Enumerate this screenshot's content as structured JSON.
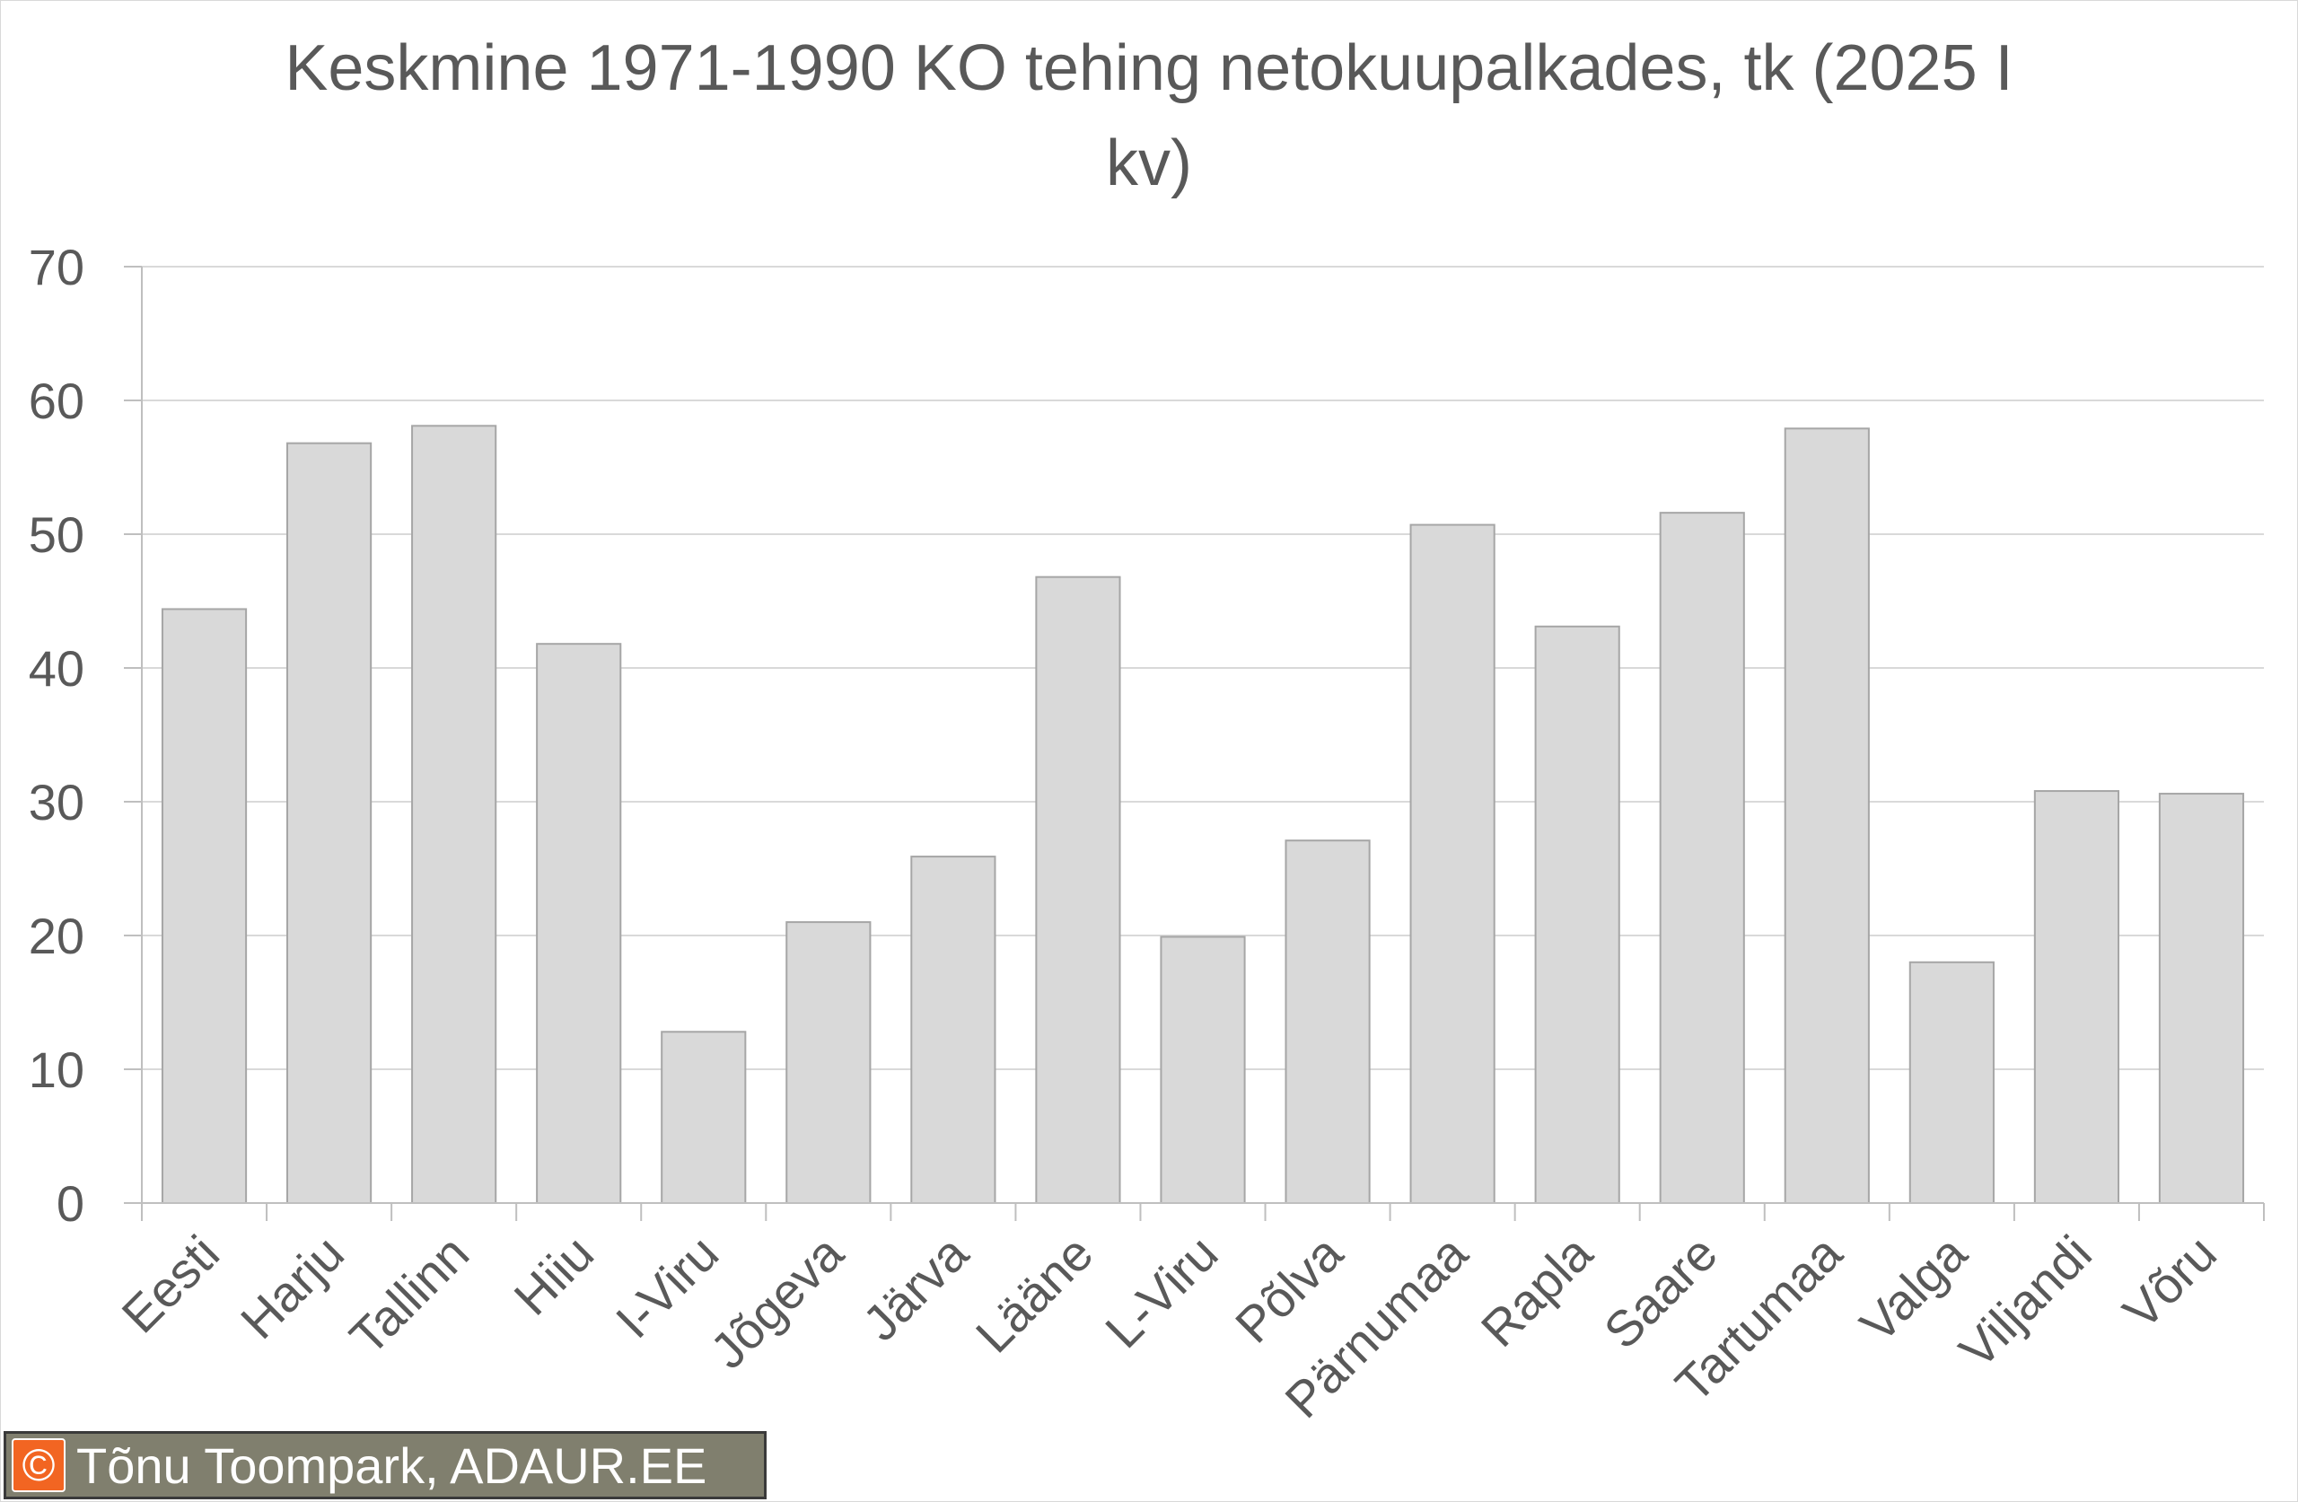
{
  "chart_data": {
    "type": "bar",
    "title_lines": [
      "Keskmine 1971-1990 KO tehing netokuupalkades, tk (2025 I",
      "kv)"
    ],
    "categories": [
      "Eesti",
      "Harju",
      "Tallinn",
      "Hiiu",
      "I-Viru",
      "Jõgeva",
      "Järva",
      "Lääne",
      "L-Viru",
      "Põlva",
      "Pärnumaa",
      "Rapla",
      "Saare",
      "Tartumaa",
      "Valga",
      "Viljandi",
      "Võru"
    ],
    "values": [
      44.4,
      56.8,
      58.1,
      41.8,
      12.8,
      21.0,
      25.9,
      46.8,
      19.9,
      27.1,
      50.7,
      43.1,
      51.6,
      57.9,
      18.0,
      30.8,
      30.6
    ],
    "ylim": [
      0,
      70
    ],
    "yticks": [
      0,
      10,
      20,
      30,
      40,
      50,
      60,
      70
    ],
    "grid": true,
    "legend": "none",
    "colors": {
      "bar_fill": "#d9d9d9",
      "bar_stroke": "#a6a6a6",
      "grid": "#d9d9d9",
      "text": "#595959"
    }
  },
  "credit": {
    "symbol": "©",
    "text": "Tõnu Toompark, ADAUR.EE",
    "colors": {
      "background": "#807f6e",
      "icon": "#f26522"
    }
  }
}
